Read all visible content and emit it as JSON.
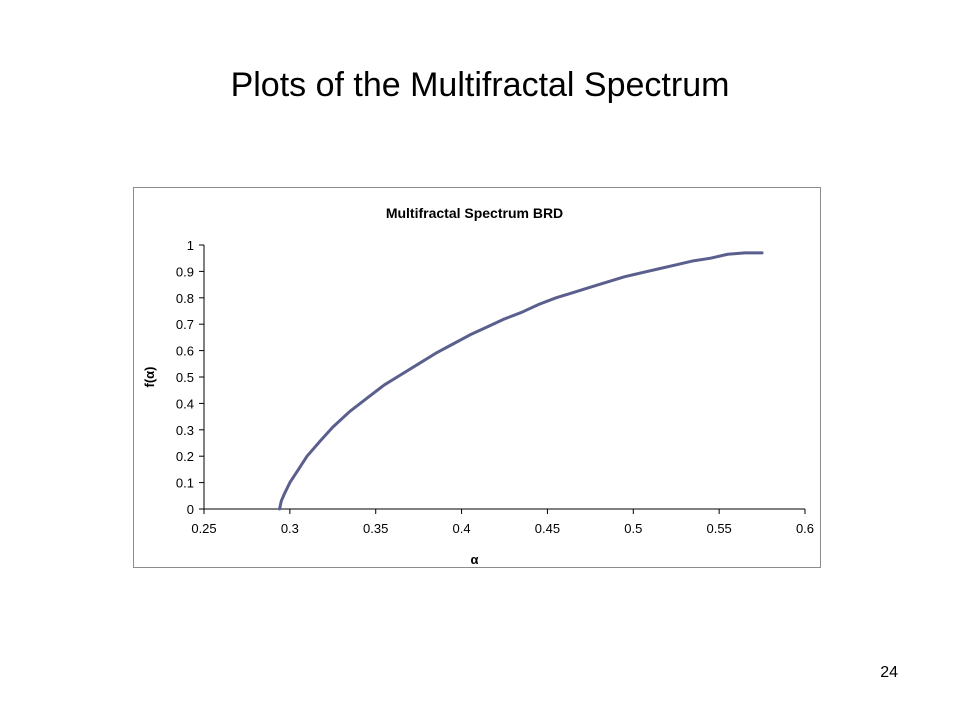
{
  "slide": {
    "title": "Plots of the Multifractal Spectrum",
    "page_number": "24"
  },
  "chart_data": {
    "type": "line",
    "title": "Multifractal Spectrum BRD",
    "xlabel": "α",
    "ylabel": "f(α)",
    "xlim": [
      0.25,
      0.6
    ],
    "ylim": [
      0,
      1
    ],
    "x_ticks": [
      "0.25",
      "0.3",
      "0.35",
      "0.4",
      "0.45",
      "0.5",
      "0.55",
      "0.6"
    ],
    "y_ticks": [
      "0",
      "0.1",
      "0.2",
      "0.3",
      "0.4",
      "0.5",
      "0.6",
      "0.7",
      "0.8",
      "0.9",
      "1"
    ],
    "grid": false,
    "legend": "none",
    "series": [
      {
        "color": "#5b5f8e",
        "x": [
          0.294,
          0.295,
          0.297,
          0.3,
          0.305,
          0.31,
          0.318,
          0.325,
          0.335,
          0.345,
          0.355,
          0.365,
          0.375,
          0.385,
          0.395,
          0.405,
          0.415,
          0.425,
          0.435,
          0.445,
          0.455,
          0.465,
          0.475,
          0.485,
          0.495,
          0.505,
          0.515,
          0.525,
          0.535,
          0.545,
          0.555,
          0.565,
          0.575
        ],
        "y": [
          0.0,
          0.03,
          0.06,
          0.1,
          0.15,
          0.2,
          0.26,
          0.31,
          0.37,
          0.42,
          0.47,
          0.51,
          0.55,
          0.59,
          0.625,
          0.66,
          0.69,
          0.72,
          0.745,
          0.775,
          0.8,
          0.82,
          0.84,
          0.86,
          0.88,
          0.895,
          0.91,
          0.925,
          0.94,
          0.95,
          0.965,
          0.97,
          0.97
        ]
      }
    ]
  }
}
